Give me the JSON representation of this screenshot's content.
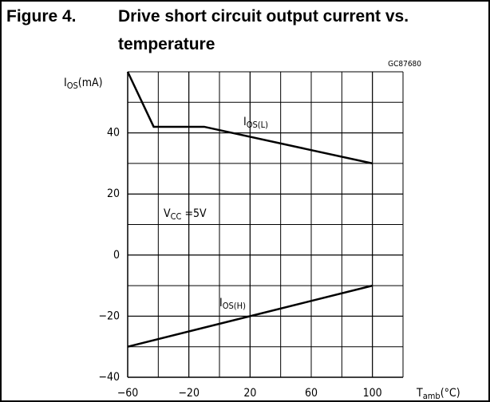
{
  "chart_data": {
    "type": "line",
    "title_label": "Figure 4.",
    "title_line1": "Drive short circuit output current vs.",
    "title_line2": "temperature",
    "code": "GC87680",
    "y_label": {
      "main": "I",
      "sub": "OS",
      "unit": "(mA)"
    },
    "x_label": {
      "main": "T",
      "sub": "amb",
      "unit": "(°C)"
    },
    "annotation": {
      "main": "V",
      "sub": "CC",
      "rest": " =5V"
    },
    "xlim": [
      -60,
      120
    ],
    "ylim": [
      -40,
      60
    ],
    "xticks": [
      {
        "value": -60,
        "label": "−60"
      },
      {
        "value": -20,
        "label": "−20"
      },
      20,
      60,
      100
    ],
    "yticks": [
      {
        "value": -40,
        "label": "−40"
      },
      {
        "value": -20,
        "label": "−20"
      },
      0,
      20,
      40
    ],
    "xgrid": [
      -40,
      -20,
      0,
      20,
      40,
      60,
      80,
      100
    ],
    "ygrid": [
      -30,
      -20,
      -10,
      0,
      10,
      20,
      30,
      40,
      50
    ],
    "grid": true,
    "color": "#000000",
    "series": [
      {
        "label_main": "I",
        "label_sub": "OS(L)",
        "x": [
          -60,
          -43,
          -10,
          100
        ],
        "values": [
          60,
          42,
          42,
          30
        ]
      },
      {
        "label_main": "I",
        "label_sub": "OS(H)",
        "x": [
          -60,
          100
        ],
        "values": [
          -30,
          -10
        ]
      }
    ]
  }
}
